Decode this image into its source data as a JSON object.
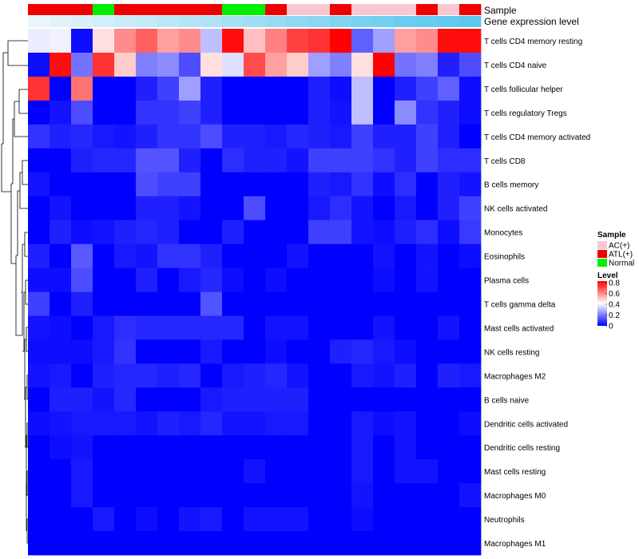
{
  "chart_data": {
    "type": "heatmap",
    "title": "",
    "annotation_labels": {
      "sample": "Sample",
      "gene_expression": "Gene expression level"
    },
    "rows": [
      "T cells CD4 memory resting",
      "T cells CD4 naive",
      "T cells follicular helper",
      "T cells regulatory  Tregs",
      "T cells CD4 memory activated",
      "T cells CD8",
      "B cells memory",
      "NK cells activated",
      "Monocytes",
      "Eosinophils",
      "Plasma cells",
      "T cells gamma delta",
      "Mast cells activated",
      "NK cells resting",
      "Macrophages M2",
      "B cells naive",
      "Dendritic cells activated",
      "Dendritic cells resting",
      "Mast cells resting",
      "Macrophages M0",
      "Neutrophils",
      "Macrophages M1"
    ],
    "column_count": 21,
    "sample_groups": [
      "ATL(+)",
      "ATL(+)",
      "ATL(+)",
      "Normal",
      "ATL(+)",
      "ATL(+)",
      "ATL(+)",
      "ATL(+)",
      "ATL(+)",
      "Normal",
      "Normal",
      "ATL(+)",
      "AC(+)",
      "AC(+)",
      "ATL(+)",
      "AC(+)",
      "AC(+)",
      "AC(+)",
      "ATL(+)",
      "AC(+)",
      "ATL(+)"
    ],
    "gene_expression": [
      0.05,
      0.1,
      0.15,
      0.2,
      0.25,
      0.3,
      0.35,
      0.4,
      0.45,
      0.5,
      0.55,
      0.6,
      0.65,
      0.7,
      0.75,
      0.8,
      0.85,
      0.9,
      0.93,
      0.96,
      1.0
    ],
    "values": [
      [
        0.37,
        0.38,
        0.02,
        0.45,
        0.58,
        0.65,
        0.55,
        0.58,
        0.3,
        0.78,
        0.5,
        0.6,
        0.7,
        0.72,
        0.8,
        0.15,
        0.25,
        0.55,
        0.58,
        0.78,
        0.78
      ],
      [
        0.02,
        0.78,
        0.18,
        0.72,
        0.48,
        0.2,
        0.22,
        0.12,
        0.45,
        0.35,
        0.68,
        0.55,
        0.48,
        0.25,
        0.2,
        0.45,
        0.8,
        0.18,
        0.2,
        0.05,
        0.12
      ],
      [
        0.72,
        0.0,
        0.62,
        0.0,
        0.0,
        0.05,
        0.1,
        0.25,
        0.05,
        0.0,
        0.0,
        0.0,
        0.0,
        0.05,
        0.02,
        0.3,
        0.0,
        0.05,
        0.1,
        0.15,
        0.02
      ],
      [
        0.0,
        0.03,
        0.12,
        0.0,
        0.0,
        0.08,
        0.08,
        0.1,
        0.05,
        0.0,
        0.0,
        0.0,
        0.0,
        0.05,
        0.03,
        0.3,
        0.0,
        0.22,
        0.08,
        0.05,
        0.02
      ],
      [
        0.08,
        0.05,
        0.06,
        0.04,
        0.03,
        0.05,
        0.08,
        0.08,
        0.12,
        0.05,
        0.05,
        0.04,
        0.06,
        0.05,
        0.04,
        0.1,
        0.05,
        0.05,
        0.1,
        0.05,
        0.0
      ],
      [
        0.0,
        0.0,
        0.05,
        0.06,
        0.06,
        0.13,
        0.13,
        0.05,
        0.0,
        0.07,
        0.05,
        0.05,
        0.03,
        0.1,
        0.1,
        0.1,
        0.08,
        0.05,
        0.1,
        0.07,
        0.07
      ],
      [
        0.03,
        0.0,
        0.0,
        0.0,
        0.0,
        0.12,
        0.1,
        0.1,
        0.0,
        0.0,
        0.0,
        0.0,
        0.0,
        0.05,
        0.04,
        0.08,
        0.02,
        0.07,
        0.0,
        0.05,
        0.03
      ],
      [
        0.0,
        0.03,
        0.0,
        0.0,
        0.0,
        0.05,
        0.05,
        0.03,
        0.0,
        0.0,
        0.12,
        0.0,
        0.0,
        0.04,
        0.07,
        0.03,
        0.0,
        0.04,
        0.0,
        0.05,
        0.1
      ],
      [
        0.0,
        0.05,
        0.02,
        0.03,
        0.05,
        0.06,
        0.05,
        0.0,
        0.0,
        0.05,
        0.0,
        0.0,
        0.0,
        0.1,
        0.1,
        0.03,
        0.02,
        0.05,
        0.07,
        0.02,
        0.09
      ],
      [
        0.05,
        0.0,
        0.14,
        0.0,
        0.04,
        0.03,
        0.08,
        0.08,
        0.05,
        0.0,
        0.0,
        0.0,
        0.03,
        0.0,
        0.0,
        0.0,
        0.03,
        0.0,
        0.03,
        0.0,
        0.02
      ],
      [
        0.02,
        0.02,
        0.12,
        0.0,
        0.0,
        0.05,
        0.0,
        0.04,
        0.06,
        0.02,
        0.0,
        0.02,
        0.0,
        0.0,
        0.0,
        0.0,
        0.02,
        0.0,
        0.03,
        0.0,
        0.0
      ],
      [
        0.1,
        0.0,
        0.05,
        0.0,
        0.0,
        0.0,
        0.0,
        0.0,
        0.13,
        0.0,
        0.0,
        0.0,
        0.0,
        0.0,
        0.0,
        0.0,
        0.0,
        0.0,
        0.0,
        0.0,
        0.0
      ],
      [
        0.03,
        0.02,
        0.0,
        0.04,
        0.07,
        0.06,
        0.06,
        0.06,
        0.06,
        0.06,
        0.0,
        0.03,
        0.03,
        0.0,
        0.0,
        0.0,
        0.03,
        0.0,
        0.0,
        0.03,
        0.0
      ],
      [
        0.02,
        0.02,
        0.02,
        0.04,
        0.08,
        0.0,
        0.0,
        0.0,
        0.04,
        0.0,
        0.0,
        0.02,
        0.0,
        0.0,
        0.05,
        0.06,
        0.04,
        0.02,
        0.0,
        0.0,
        0.0
      ],
      [
        0.03,
        0.04,
        0.0,
        0.05,
        0.06,
        0.06,
        0.05,
        0.06,
        0.0,
        0.04,
        0.05,
        0.06,
        0.03,
        0.0,
        0.0,
        0.04,
        0.03,
        0.05,
        0.0,
        0.05,
        0.04
      ],
      [
        0.0,
        0.05,
        0.05,
        0.03,
        0.06,
        0.0,
        0.0,
        0.0,
        0.04,
        0.05,
        0.05,
        0.05,
        0.05,
        0.0,
        0.0,
        0.0,
        0.0,
        0.0,
        0.0,
        0.0,
        0.0
      ],
      [
        0.02,
        0.03,
        0.04,
        0.04,
        0.04,
        0.03,
        0.05,
        0.04,
        0.06,
        0.03,
        0.03,
        0.04,
        0.04,
        0.0,
        0.0,
        0.04,
        0.02,
        0.03,
        0.0,
        0.0,
        0.02
      ],
      [
        0.0,
        0.02,
        0.03,
        0.0,
        0.0,
        0.0,
        0.0,
        0.0,
        0.0,
        0.0,
        0.0,
        0.0,
        0.0,
        0.0,
        0.0,
        0.04,
        0.0,
        0.03,
        0.0,
        0.0,
        0.0
      ],
      [
        0.0,
        0.0,
        0.04,
        0.0,
        0.0,
        0.0,
        0.0,
        0.0,
        0.0,
        0.0,
        0.03,
        0.0,
        0.0,
        0.0,
        0.0,
        0.04,
        0.0,
        0.03,
        0.03,
        0.0,
        0.0
      ],
      [
        0.0,
        0.0,
        0.04,
        0.0,
        0.0,
        0.0,
        0.0,
        0.0,
        0.0,
        0.0,
        0.0,
        0.0,
        0.0,
        0.0,
        0.0,
        0.03,
        0.0,
        0.0,
        0.0,
        0.0,
        0.03
      ],
      [
        0.0,
        0.0,
        0.0,
        0.04,
        0.0,
        0.02,
        0.0,
        0.03,
        0.04,
        0.0,
        0.03,
        0.03,
        0.03,
        0.0,
        0.0,
        0.02,
        0.0,
        0.0,
        0.0,
        0.0,
        0.0
      ],
      [
        0.0,
        0.0,
        0.0,
        0.0,
        0.0,
        0.0,
        0.0,
        0.0,
        0.0,
        0.0,
        0.0,
        0.0,
        0.0,
        0.0,
        0.0,
        0.0,
        0.0,
        0.0,
        0.0,
        0.0,
        0.0
      ]
    ],
    "legend": {
      "sample_title": "Sample",
      "sample_entries": [
        {
          "label": "AC(+)",
          "color": "#f8c8d0"
        },
        {
          "label": "ATL(+)",
          "color": "#ee0000"
        },
        {
          "label": "Normal",
          "color": "#00ee00"
        }
      ],
      "level_title": "Level",
      "level_ticks": [
        "0.8",
        "0.6",
        "0.4",
        "0.2",
        "0"
      ],
      "level_range": [
        0,
        0.8
      ],
      "position": "right"
    },
    "colors": {
      "low": "#0000ff",
      "mid": "#ffffff",
      "high": "#ff0000"
    },
    "gene_expression_colors": {
      "low": "#f0f7fa",
      "high": "#5bc8ee"
    }
  }
}
